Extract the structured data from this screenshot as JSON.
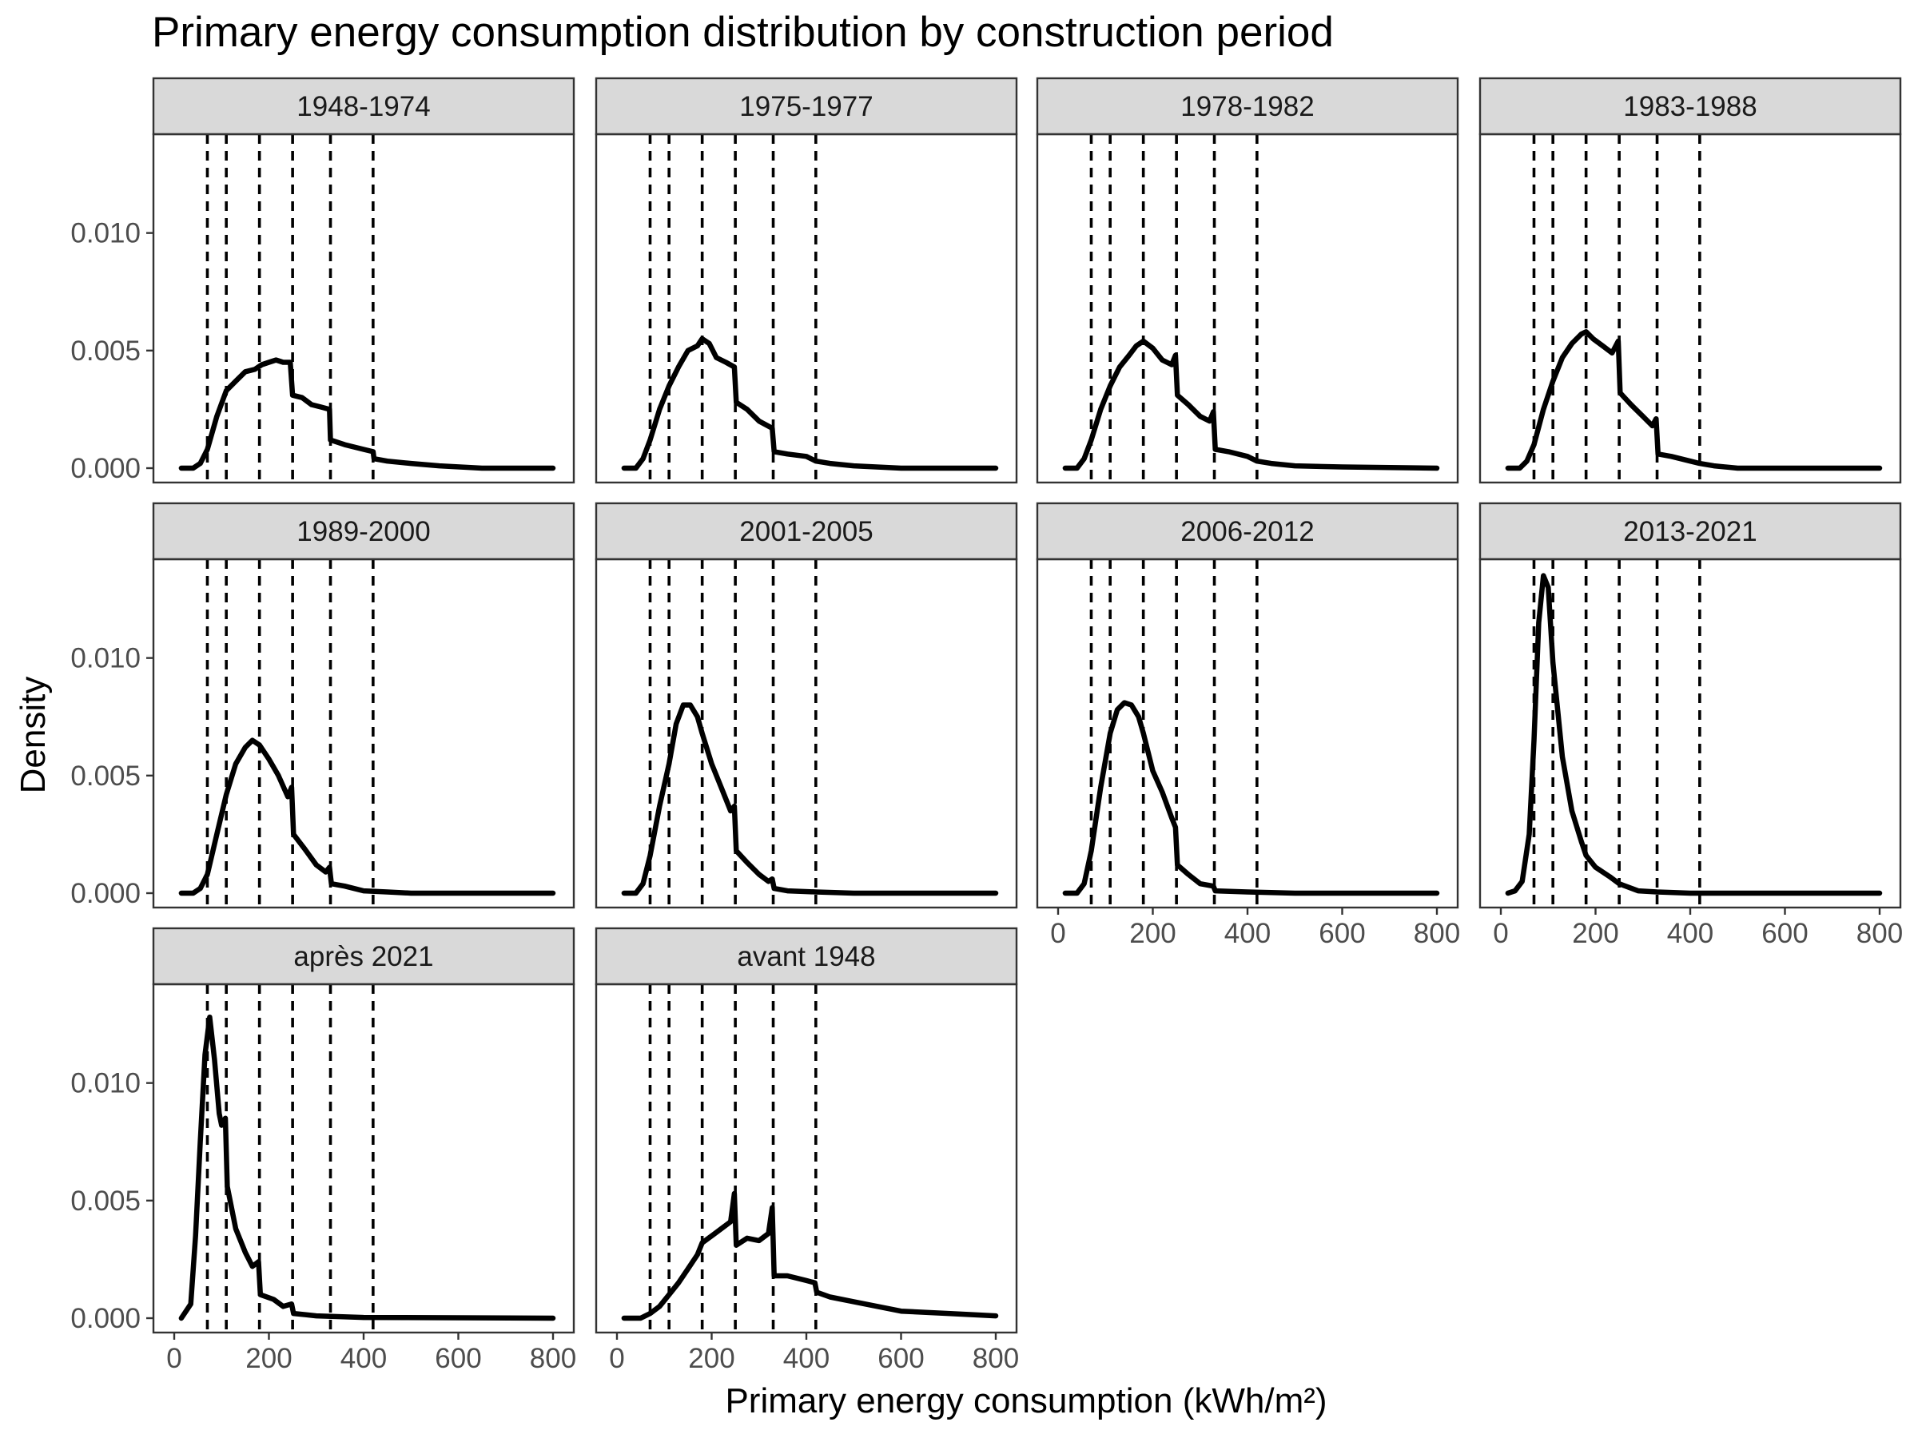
{
  "chart_data": {
    "type": "line",
    "title": "Primary energy consumption distribution by construction period",
    "xlabel": "Primary energy consumption (kWh/m²)",
    "ylabel": "Density",
    "xlim": [
      0,
      800
    ],
    "ylim": [
      0,
      0.014
    ],
    "x_ticks": [
      0,
      200,
      400,
      600,
      800
    ],
    "y_ticks": [
      0,
      0.005,
      0.01
    ],
    "y_tick_labels": [
      "0.000",
      "0.005",
      "0.010"
    ],
    "reference_lines_x": [
      70,
      110,
      180,
      250,
      330,
      420
    ],
    "grid": false,
    "layout": {
      "ncol": 4,
      "nrow": 3
    },
    "facets": [
      {
        "name": "1948-1974",
        "points": [
          [
            15,
            0
          ],
          [
            40,
            0
          ],
          [
            55,
            0.0002
          ],
          [
            70,
            0.0008
          ],
          [
            90,
            0.0022
          ],
          [
            110,
            0.0033
          ],
          [
            130,
            0.0037
          ],
          [
            150,
            0.0041
          ],
          [
            170,
            0.0042
          ],
          [
            185,
            0.0044
          ],
          [
            200,
            0.0045
          ],
          [
            215,
            0.0046
          ],
          [
            230,
            0.0045
          ],
          [
            245,
            0.0045
          ],
          [
            250,
            0.0031
          ],
          [
            270,
            0.003
          ],
          [
            290,
            0.0027
          ],
          [
            310,
            0.0026
          ],
          [
            328,
            0.0025
          ],
          [
            330,
            0.0012
          ],
          [
            360,
            0.001
          ],
          [
            400,
            0.0008
          ],
          [
            420,
            0.0007
          ],
          [
            422,
            0.0004
          ],
          [
            450,
            0.0003
          ],
          [
            500,
            0.0002
          ],
          [
            560,
            0.0001
          ],
          [
            650,
            0
          ],
          [
            800,
            0
          ]
        ]
      },
      {
        "name": "1975-1977",
        "points": [
          [
            15,
            0
          ],
          [
            40,
            0
          ],
          [
            55,
            0.0004
          ],
          [
            70,
            0.0012
          ],
          [
            90,
            0.0025
          ],
          [
            110,
            0.0035
          ],
          [
            130,
            0.0043
          ],
          [
            150,
            0.005
          ],
          [
            170,
            0.0052
          ],
          [
            180,
            0.0055
          ],
          [
            195,
            0.0053
          ],
          [
            210,
            0.0047
          ],
          [
            230,
            0.0045
          ],
          [
            248,
            0.0043
          ],
          [
            252,
            0.0028
          ],
          [
            275,
            0.0025
          ],
          [
            300,
            0.002
          ],
          [
            328,
            0.0017
          ],
          [
            332,
            0.0007
          ],
          [
            360,
            0.0006
          ],
          [
            400,
            0.0005
          ],
          [
            420,
            0.0003
          ],
          [
            450,
            0.0002
          ],
          [
            500,
            0.0001
          ],
          [
            600,
            0
          ],
          [
            800,
            0
          ]
        ]
      },
      {
        "name": "1978-1982",
        "points": [
          [
            15,
            0
          ],
          [
            40,
            0
          ],
          [
            55,
            0.0004
          ],
          [
            70,
            0.0012
          ],
          [
            90,
            0.0025
          ],
          [
            110,
            0.0035
          ],
          [
            130,
            0.0043
          ],
          [
            150,
            0.0048
          ],
          [
            165,
            0.0052
          ],
          [
            180,
            0.0054
          ],
          [
            200,
            0.0051
          ],
          [
            220,
            0.0046
          ],
          [
            240,
            0.0044
          ],
          [
            248,
            0.0048
          ],
          [
            252,
            0.0031
          ],
          [
            275,
            0.0027
          ],
          [
            300,
            0.0022
          ],
          [
            320,
            0.002
          ],
          [
            328,
            0.0024
          ],
          [
            332,
            0.0008
          ],
          [
            360,
            0.0007
          ],
          [
            400,
            0.0005
          ],
          [
            420,
            0.0003
          ],
          [
            450,
            0.0002
          ],
          [
            500,
            0.0001
          ],
          [
            600,
            5e-05
          ],
          [
            800,
            0
          ]
        ]
      },
      {
        "name": "1983-1988",
        "points": [
          [
            15,
            0
          ],
          [
            40,
            0
          ],
          [
            55,
            0.0003
          ],
          [
            70,
            0.001
          ],
          [
            90,
            0.0025
          ],
          [
            110,
            0.0037
          ],
          [
            130,
            0.0047
          ],
          [
            150,
            0.0053
          ],
          [
            170,
            0.0057
          ],
          [
            180,
            0.0058
          ],
          [
            195,
            0.0055
          ],
          [
            215,
            0.0052
          ],
          [
            235,
            0.0049
          ],
          [
            248,
            0.0054
          ],
          [
            252,
            0.0032
          ],
          [
            275,
            0.0027
          ],
          [
            300,
            0.0022
          ],
          [
            320,
            0.0018
          ],
          [
            328,
            0.0021
          ],
          [
            332,
            0.0006
          ],
          [
            360,
            0.0005
          ],
          [
            400,
            0.0003
          ],
          [
            420,
            0.0002
          ],
          [
            450,
            0.0001
          ],
          [
            500,
            0
          ],
          [
            800,
            0
          ]
        ]
      },
      {
        "name": "1989-2000",
        "points": [
          [
            15,
            0
          ],
          [
            40,
            0
          ],
          [
            55,
            0.0002
          ],
          [
            70,
            0.0008
          ],
          [
            90,
            0.0025
          ],
          [
            110,
            0.0042
          ],
          [
            130,
            0.0055
          ],
          [
            150,
            0.0062
          ],
          [
            165,
            0.0065
          ],
          [
            180,
            0.0063
          ],
          [
            200,
            0.0057
          ],
          [
            220,
            0.005
          ],
          [
            240,
            0.0041
          ],
          [
            248,
            0.0045
          ],
          [
            252,
            0.0025
          ],
          [
            275,
            0.0019
          ],
          [
            300,
            0.0012
          ],
          [
            320,
            0.0009
          ],
          [
            328,
            0.0011
          ],
          [
            332,
            0.0004
          ],
          [
            360,
            0.0003
          ],
          [
            400,
            0.0001
          ],
          [
            450,
            5e-05
          ],
          [
            500,
            0
          ],
          [
            800,
            0
          ]
        ]
      },
      {
        "name": "2001-2005",
        "points": [
          [
            15,
            0
          ],
          [
            40,
            0
          ],
          [
            55,
            0.0004
          ],
          [
            70,
            0.0016
          ],
          [
            90,
            0.0037
          ],
          [
            110,
            0.0055
          ],
          [
            125,
            0.0072
          ],
          [
            140,
            0.008
          ],
          [
            155,
            0.008
          ],
          [
            170,
            0.0075
          ],
          [
            180,
            0.0068
          ],
          [
            200,
            0.0055
          ],
          [
            220,
            0.0045
          ],
          [
            240,
            0.0035
          ],
          [
            248,
            0.0037
          ],
          [
            252,
            0.0018
          ],
          [
            275,
            0.0013
          ],
          [
            300,
            0.0008
          ],
          [
            320,
            0.0005
          ],
          [
            328,
            0.0006
          ],
          [
            332,
            0.0002
          ],
          [
            360,
            0.0001
          ],
          [
            420,
            5e-05
          ],
          [
            500,
            0
          ],
          [
            800,
            0
          ]
        ]
      },
      {
        "name": "2006-2012",
        "points": [
          [
            15,
            0
          ],
          [
            40,
            0
          ],
          [
            55,
            0.0004
          ],
          [
            70,
            0.0018
          ],
          [
            90,
            0.0045
          ],
          [
            110,
            0.0068
          ],
          [
            125,
            0.0078
          ],
          [
            140,
            0.0081
          ],
          [
            155,
            0.008
          ],
          [
            170,
            0.0075
          ],
          [
            180,
            0.0068
          ],
          [
            200,
            0.0052
          ],
          [
            220,
            0.0043
          ],
          [
            240,
            0.0032
          ],
          [
            248,
            0.0028
          ],
          [
            252,
            0.0012
          ],
          [
            275,
            0.0008
          ],
          [
            300,
            0.0004
          ],
          [
            328,
            0.0003
          ],
          [
            332,
            0.0001
          ],
          [
            400,
            5e-05
          ],
          [
            500,
            0
          ],
          [
            800,
            0
          ]
        ]
      },
      {
        "name": "2013-2021",
        "points": [
          [
            15,
            0
          ],
          [
            30,
            0.0001
          ],
          [
            45,
            0.0005
          ],
          [
            60,
            0.0025
          ],
          [
            70,
            0.0065
          ],
          [
            80,
            0.0115
          ],
          [
            90,
            0.0135
          ],
          [
            100,
            0.013
          ],
          [
            110,
            0.0098
          ],
          [
            130,
            0.0058
          ],
          [
            150,
            0.0035
          ],
          [
            170,
            0.0022
          ],
          [
            180,
            0.0016
          ],
          [
            200,
            0.0011
          ],
          [
            230,
            0.0007
          ],
          [
            250,
            0.0004
          ],
          [
            290,
            0.0001
          ],
          [
            330,
            5e-05
          ],
          [
            400,
            0
          ],
          [
            800,
            0
          ]
        ]
      },
      {
        "name": "après 2021",
        "points": [
          [
            15,
            0
          ],
          [
            25,
            0.0003
          ],
          [
            35,
            0.0006
          ],
          [
            45,
            0.0035
          ],
          [
            55,
            0.0075
          ],
          [
            65,
            0.0112
          ],
          [
            75,
            0.0128
          ],
          [
            85,
            0.011
          ],
          [
            95,
            0.0087
          ],
          [
            100,
            0.0082
          ],
          [
            108,
            0.0085
          ],
          [
            112,
            0.0056
          ],
          [
            130,
            0.0038
          ],
          [
            150,
            0.0028
          ],
          [
            165,
            0.0022
          ],
          [
            178,
            0.0024
          ],
          [
            182,
            0.001
          ],
          [
            210,
            0.0008
          ],
          [
            230,
            0.0005
          ],
          [
            248,
            0.0006
          ],
          [
            252,
            0.0002
          ],
          [
            300,
            0.0001
          ],
          [
            400,
            3e-05
          ],
          [
            800,
            0
          ]
        ]
      },
      {
        "name": "avant 1948",
        "points": [
          [
            15,
            0
          ],
          [
            50,
            0
          ],
          [
            70,
            0.0002
          ],
          [
            90,
            0.0005
          ],
          [
            110,
            0.001
          ],
          [
            130,
            0.0015
          ],
          [
            150,
            0.0021
          ],
          [
            170,
            0.0027
          ],
          [
            180,
            0.0032
          ],
          [
            200,
            0.0035
          ],
          [
            220,
            0.0038
          ],
          [
            240,
            0.0041
          ],
          [
            248,
            0.0053
          ],
          [
            252,
            0.0031
          ],
          [
            275,
            0.0034
          ],
          [
            300,
            0.0033
          ],
          [
            320,
            0.0036
          ],
          [
            328,
            0.0047
          ],
          [
            332,
            0.0018
          ],
          [
            360,
            0.0018
          ],
          [
            400,
            0.0016
          ],
          [
            418,
            0.0015
          ],
          [
            422,
            0.0011
          ],
          [
            450,
            0.0009
          ],
          [
            500,
            0.0007
          ],
          [
            550,
            0.0005
          ],
          [
            600,
            0.0003
          ],
          [
            700,
            0.0002
          ],
          [
            800,
            0.0001
          ]
        ]
      }
    ]
  }
}
